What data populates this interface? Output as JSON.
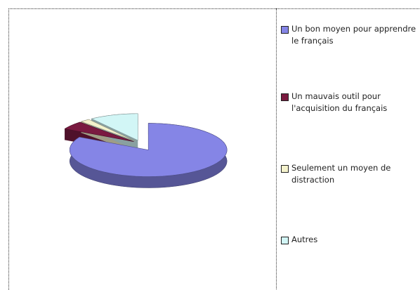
{
  "chart_data": {
    "type": "pie3d",
    "categories": [
      "Un bon moyen pour apprendre le français",
      "Un mauvais outil pour l'acquisition du français",
      "Seulement un moyen de distraction",
      "Autres"
    ],
    "values": [
      83,
      5,
      2,
      10
    ],
    "colors": [
      "#8585e6",
      "#7a1a40",
      "#f4f2cc",
      "#d2f6f6"
    ]
  }
}
